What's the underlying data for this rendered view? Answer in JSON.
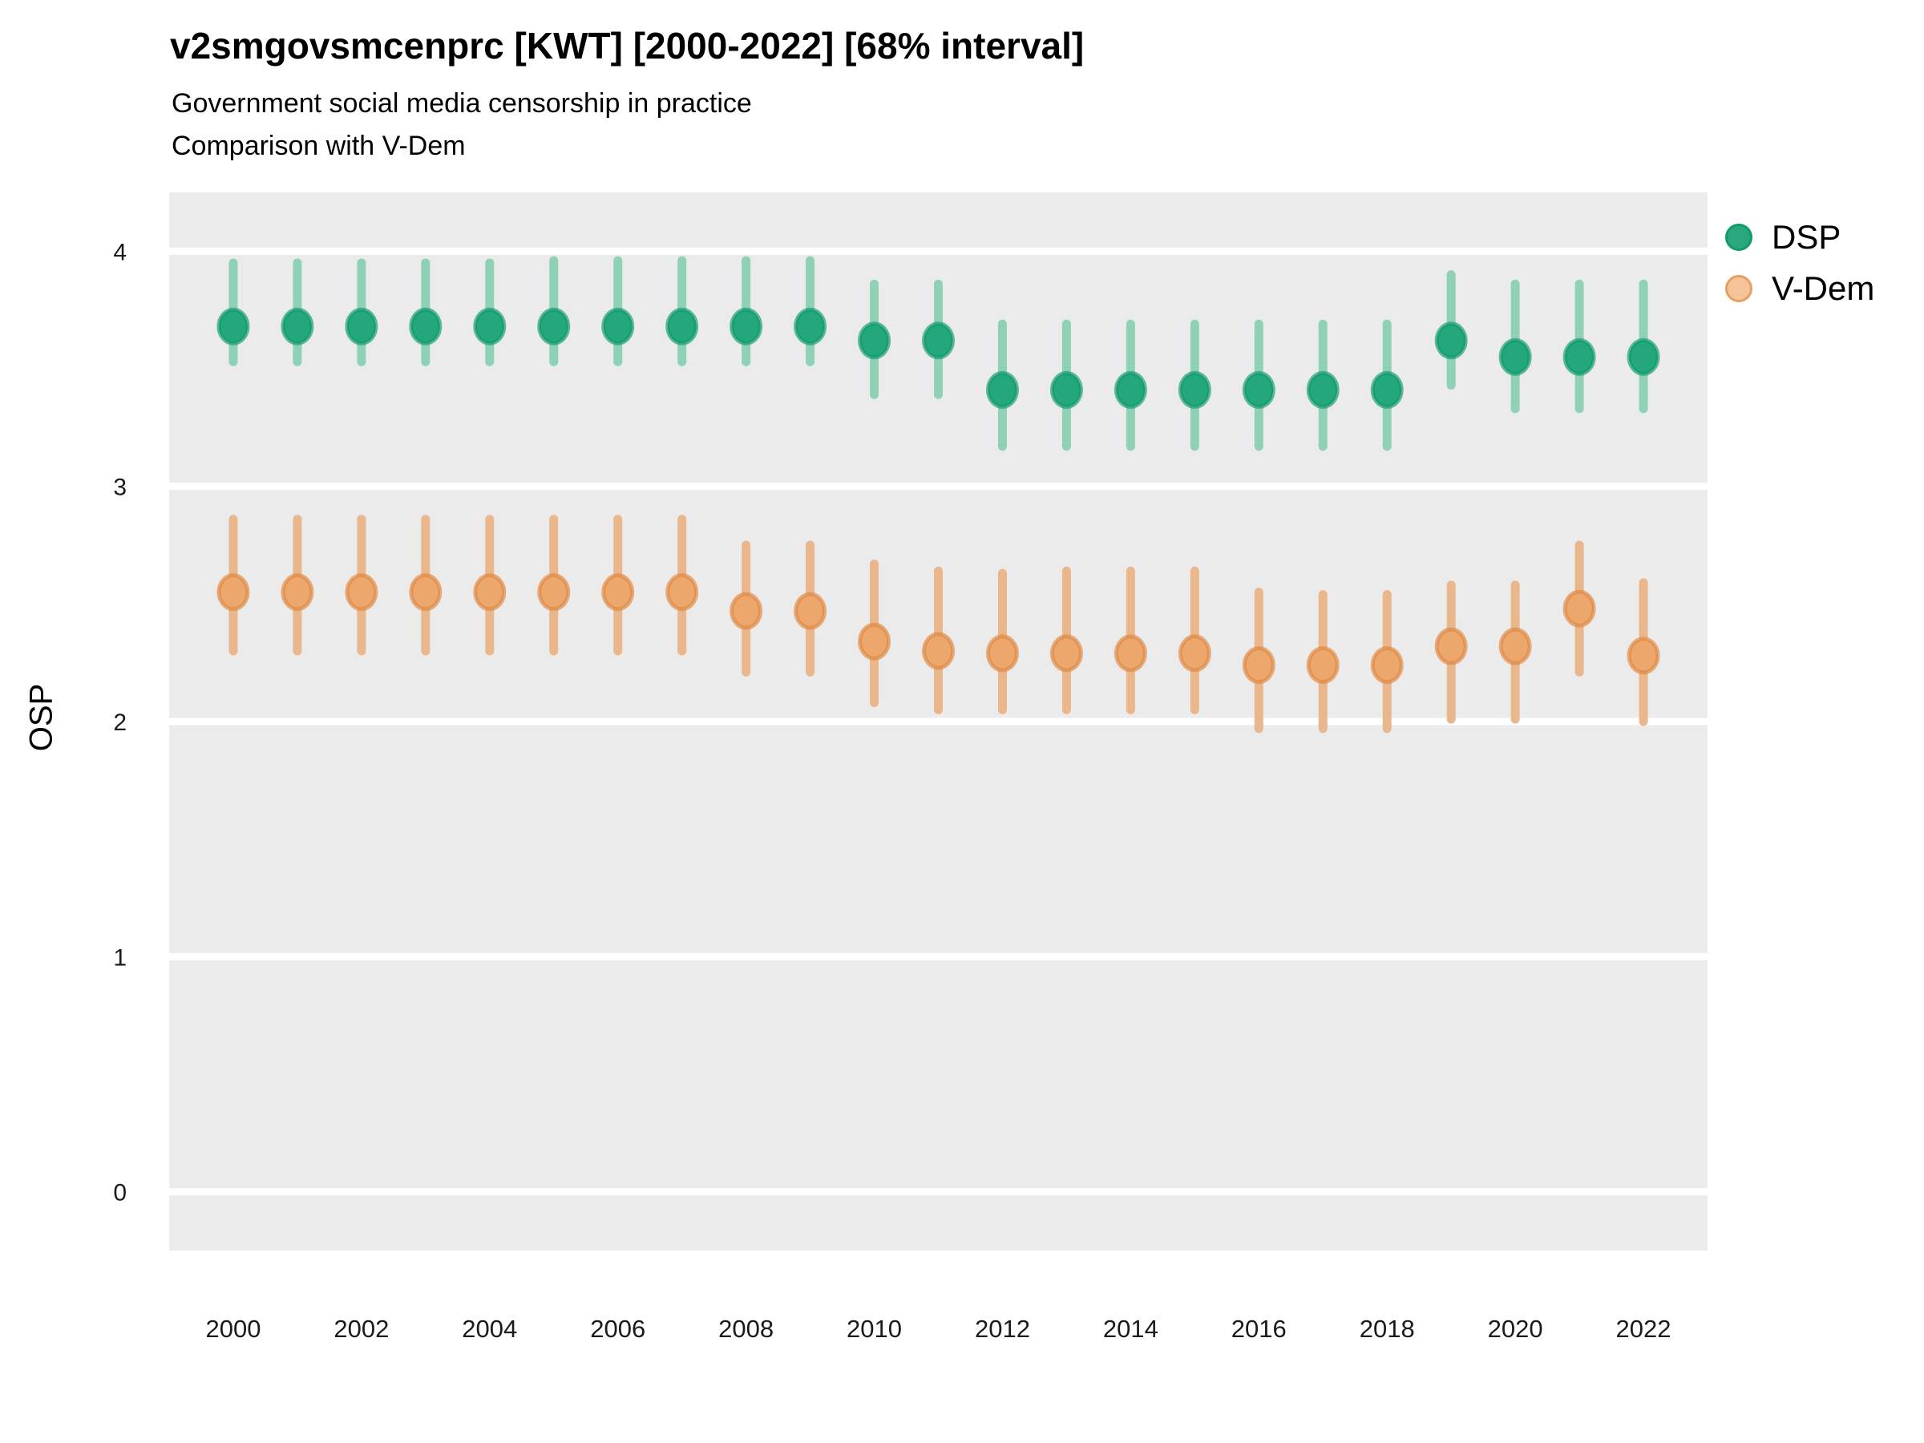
{
  "header": {
    "title": "v2smgovsmcenprc [KWT] [2000-2022] [68% interval]",
    "subtitle1": "Government social media censorship in practice",
    "subtitle2": "Comparison with V-Dem"
  },
  "colors": {
    "panel_background": "#ebebeb",
    "gridline": "#ffffff",
    "axis_text": "#1a1a1a",
    "dsp_point": "#25a77d",
    "dsp_point_ring": "#119a6e",
    "dsp_errorbar": "#8fd1b4",
    "vdem_point": "#eca76d",
    "vdem_point_ring": "#e0873f",
    "vdem_errorbar": "#eab68c",
    "legend_dsp_dot": "#2ba77f",
    "legend_vdem_dot": "#f4c397",
    "legend_vdem_ring": "#e89e63"
  },
  "chart_data": {
    "type": "scatter",
    "title": "v2smgovsmcenprc [KWT] [2000-2022] [68% interval]",
    "subtitle": [
      "Government social media censorship in practice",
      "Comparison with V-Dem"
    ],
    "xlabel": "",
    "ylabel": "OSP",
    "xlim": [
      1999,
      2023
    ],
    "ylim": [
      -0.25,
      4.25
    ],
    "x_ticks": [
      2000,
      2002,
      2004,
      2006,
      2008,
      2010,
      2012,
      2014,
      2016,
      2018,
      2020,
      2022
    ],
    "y_ticks": [
      0,
      1,
      2,
      3,
      4
    ],
    "grid": "major-horizontal-only",
    "legend_position": "right",
    "interval_label": "68% interval",
    "series": [
      {
        "name": "DSP",
        "point_color": "#25a77d",
        "ring_color": "#119a6e",
        "bar_color": "#8fd1b4",
        "points": [
          {
            "year": 2000,
            "value": 3.68,
            "lo": 3.53,
            "hi": 3.95
          },
          {
            "year": 2001,
            "value": 3.68,
            "lo": 3.53,
            "hi": 3.95
          },
          {
            "year": 2002,
            "value": 3.68,
            "lo": 3.53,
            "hi": 3.95
          },
          {
            "year": 2003,
            "value": 3.68,
            "lo": 3.53,
            "hi": 3.95
          },
          {
            "year": 2004,
            "value": 3.68,
            "lo": 3.53,
            "hi": 3.95
          },
          {
            "year": 2005,
            "value": 3.68,
            "lo": 3.53,
            "hi": 3.96
          },
          {
            "year": 2006,
            "value": 3.68,
            "lo": 3.53,
            "hi": 3.96
          },
          {
            "year": 2007,
            "value": 3.68,
            "lo": 3.53,
            "hi": 3.96
          },
          {
            "year": 2008,
            "value": 3.68,
            "lo": 3.53,
            "hi": 3.96
          },
          {
            "year": 2009,
            "value": 3.68,
            "lo": 3.53,
            "hi": 3.96
          },
          {
            "year": 2010,
            "value": 3.62,
            "lo": 3.39,
            "hi": 3.86
          },
          {
            "year": 2011,
            "value": 3.62,
            "lo": 3.39,
            "hi": 3.86
          },
          {
            "year": 2012,
            "value": 3.41,
            "lo": 3.17,
            "hi": 3.69
          },
          {
            "year": 2013,
            "value": 3.41,
            "lo": 3.17,
            "hi": 3.69
          },
          {
            "year": 2014,
            "value": 3.41,
            "lo": 3.17,
            "hi": 3.69
          },
          {
            "year": 2015,
            "value": 3.41,
            "lo": 3.17,
            "hi": 3.69
          },
          {
            "year": 2016,
            "value": 3.41,
            "lo": 3.17,
            "hi": 3.69
          },
          {
            "year": 2017,
            "value": 3.41,
            "lo": 3.17,
            "hi": 3.69
          },
          {
            "year": 2018,
            "value": 3.41,
            "lo": 3.17,
            "hi": 3.69
          },
          {
            "year": 2019,
            "value": 3.62,
            "lo": 3.43,
            "hi": 3.9
          },
          {
            "year": 2020,
            "value": 3.55,
            "lo": 3.33,
            "hi": 3.86
          },
          {
            "year": 2021,
            "value": 3.55,
            "lo": 3.33,
            "hi": 3.86
          },
          {
            "year": 2022,
            "value": 3.55,
            "lo": 3.33,
            "hi": 3.86
          }
        ]
      },
      {
        "name": "V-Dem",
        "point_color": "#eca76d",
        "ring_color": "#e0873f",
        "bar_color": "#eab68c",
        "points": [
          {
            "year": 2000,
            "value": 2.55,
            "lo": 2.3,
            "hi": 2.86
          },
          {
            "year": 2001,
            "value": 2.55,
            "lo": 2.3,
            "hi": 2.86
          },
          {
            "year": 2002,
            "value": 2.55,
            "lo": 2.3,
            "hi": 2.86
          },
          {
            "year": 2003,
            "value": 2.55,
            "lo": 2.3,
            "hi": 2.86
          },
          {
            "year": 2004,
            "value": 2.55,
            "lo": 2.3,
            "hi": 2.86
          },
          {
            "year": 2005,
            "value": 2.55,
            "lo": 2.3,
            "hi": 2.86
          },
          {
            "year": 2006,
            "value": 2.55,
            "lo": 2.3,
            "hi": 2.86
          },
          {
            "year": 2007,
            "value": 2.55,
            "lo": 2.3,
            "hi": 2.86
          },
          {
            "year": 2008,
            "value": 2.47,
            "lo": 2.21,
            "hi": 2.75
          },
          {
            "year": 2009,
            "value": 2.47,
            "lo": 2.21,
            "hi": 2.75
          },
          {
            "year": 2010,
            "value": 2.34,
            "lo": 2.08,
            "hi": 2.67
          },
          {
            "year": 2011,
            "value": 2.3,
            "lo": 2.05,
            "hi": 2.64
          },
          {
            "year": 2012,
            "value": 2.29,
            "lo": 2.05,
            "hi": 2.63
          },
          {
            "year": 2013,
            "value": 2.29,
            "lo": 2.05,
            "hi": 2.64
          },
          {
            "year": 2014,
            "value": 2.29,
            "lo": 2.05,
            "hi": 2.64
          },
          {
            "year": 2015,
            "value": 2.29,
            "lo": 2.05,
            "hi": 2.64
          },
          {
            "year": 2016,
            "value": 2.24,
            "lo": 1.97,
            "hi": 2.55
          },
          {
            "year": 2017,
            "value": 2.24,
            "lo": 1.97,
            "hi": 2.54
          },
          {
            "year": 2018,
            "value": 2.24,
            "lo": 1.97,
            "hi": 2.54
          },
          {
            "year": 2019,
            "value": 2.32,
            "lo": 2.01,
            "hi": 2.58
          },
          {
            "year": 2020,
            "value": 2.32,
            "lo": 2.01,
            "hi": 2.58
          },
          {
            "year": 2021,
            "value": 2.48,
            "lo": 2.21,
            "hi": 2.75
          },
          {
            "year": 2022,
            "value": 2.28,
            "lo": 2.0,
            "hi": 2.59
          }
        ]
      }
    ]
  }
}
